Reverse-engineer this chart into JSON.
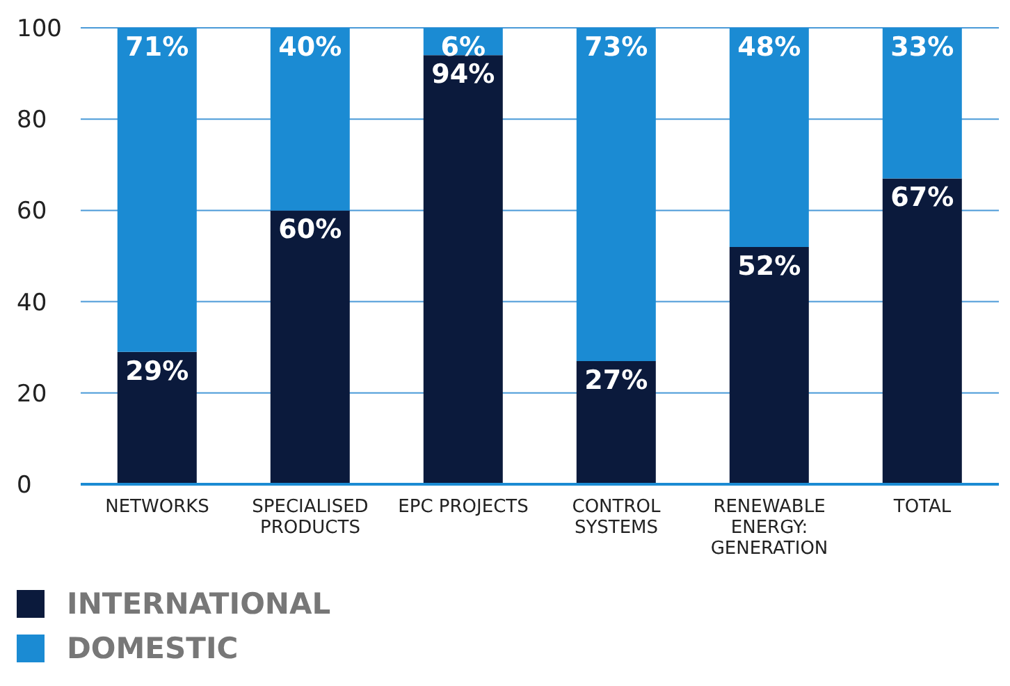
{
  "chart_data": {
    "type": "bar",
    "stacked": true,
    "categories": [
      "NETWORKS",
      "SPECIALISED PRODUCTS",
      "EPC PROJECTS",
      "CONTROL SYSTEMS",
      "RENEWABLE ENERGY: GENERATION",
      "TOTAL"
    ],
    "series": [
      {
        "name": "INTERNATIONAL",
        "color": "#0b1a3c",
        "values": [
          29,
          60,
          94,
          27,
          52,
          67
        ]
      },
      {
        "name": "DOMESTIC",
        "color": "#1b8bd3",
        "values": [
          71,
          40,
          6,
          73,
          48,
          33
        ]
      }
    ],
    "ylim": [
      0,
      100
    ],
    "yticks": [
      0,
      20,
      40,
      60,
      80,
      100
    ],
    "grid": "y",
    "legend": "bottom left",
    "value_labels": [
      [
        "29%",
        "60%",
        "94%",
        "27%",
        "52%",
        "67%"
      ],
      [
        "71%",
        "40%",
        "6%",
        "73%",
        "48%",
        "33%"
      ]
    ]
  }
}
